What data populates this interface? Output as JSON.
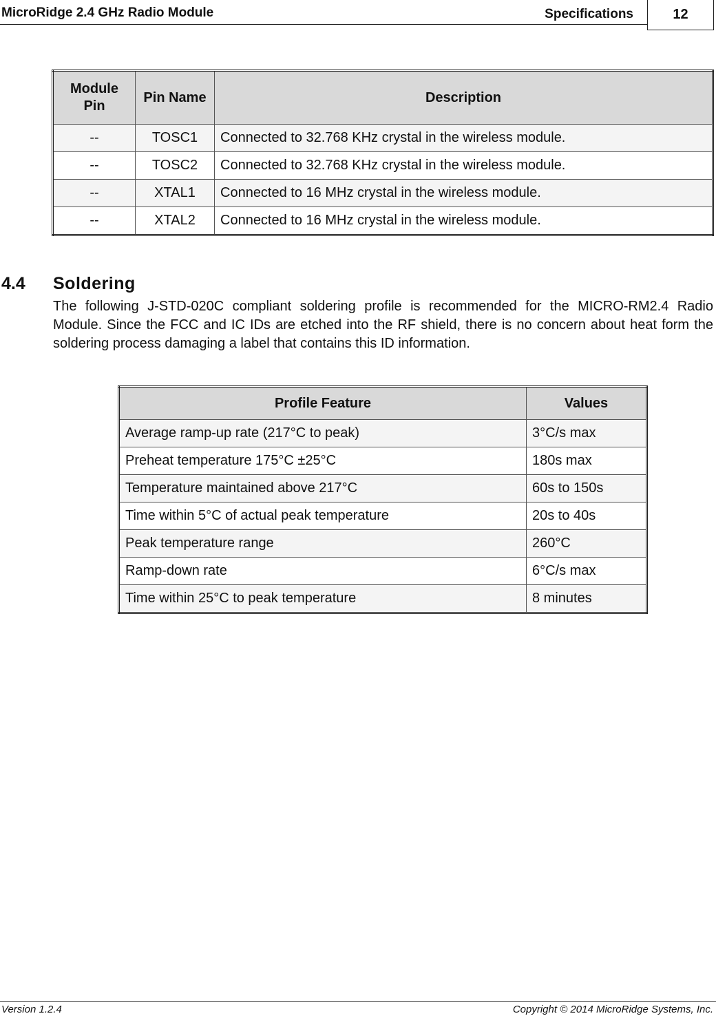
{
  "header": {
    "title": "MicroRidge 2.4 GHz Radio Module",
    "section": "Specifications",
    "page_number": "12"
  },
  "pin_table": {
    "headers": [
      "Module Pin",
      "Pin Name",
      "Description"
    ],
    "rows": [
      [
        "--",
        "TOSC1",
        "Connected to 32.768 KHz crystal in the wireless module."
      ],
      [
        "--",
        "TOSC2",
        "Connected to 32.768 KHz crystal in the wireless module."
      ],
      [
        "--",
        "XTAL1",
        "Connected to 16 MHz crystal in the wireless module."
      ],
      [
        "--",
        "XTAL2",
        "Connected to 16 MHz crystal in the wireless module."
      ]
    ]
  },
  "section": {
    "number": "4.4",
    "title": "Soldering",
    "paragraph": "The following J-STD-020C compliant soldering profile is recommended for the MICRO-RM2.4 Radio Module.  Since the FCC and IC IDs are etched into the RF shield, there is no concern about heat form the soldering process damaging a label that contains this ID information."
  },
  "profile_table": {
    "headers": [
      "Profile Feature",
      "Values"
    ],
    "rows": [
      [
        "Average ramp-up rate (217°C to peak)",
        "3°C/s max"
      ],
      [
        "Preheat temperature 175°C ±25°C",
        "180s max"
      ],
      [
        "Temperature maintained above 217°C",
        "60s to 150s"
      ],
      [
        "Time within 5°C of actual peak temperature",
        "20s to 40s"
      ],
      [
        "Peak temperature range",
        "260°C"
      ],
      [
        "Ramp-down rate",
        "6°C/s max"
      ],
      [
        "Time within 25°C to peak temperature",
        "8 minutes"
      ]
    ]
  },
  "footer": {
    "version": "Version 1.2.4",
    "copyright": "Copyright © 2014 MicroRidge Systems, Inc."
  }
}
